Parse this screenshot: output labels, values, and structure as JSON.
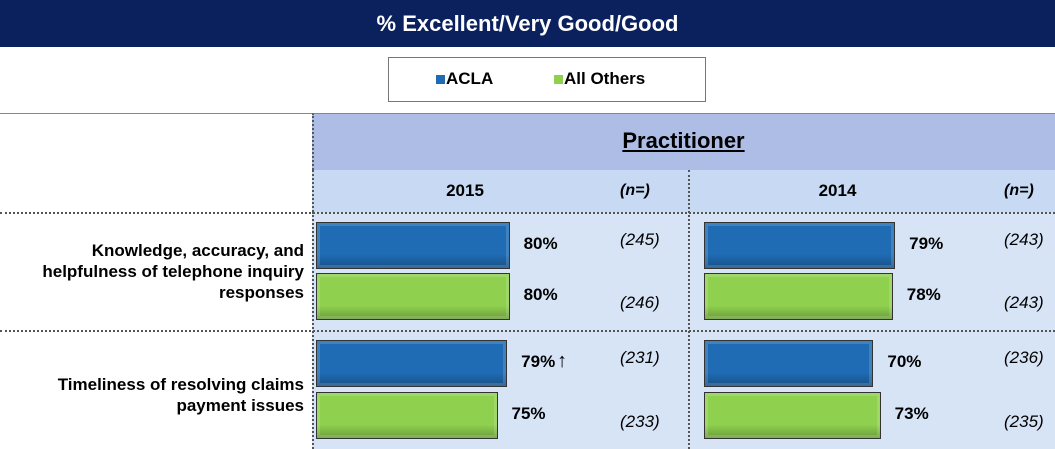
{
  "chart_data": {
    "type": "bar",
    "title": "% Excellent/Very Good/Good",
    "section": "Practitioner",
    "n_header": "(n=)",
    "categories": [
      "Knowledge, accuracy, and helpfulness of telephone inquiry responses",
      "Timeliness of resolving claims payment issues"
    ],
    "panels": [
      {
        "year": "2015",
        "series": [
          {
            "name": "ACLA",
            "color": "#1f6cb4",
            "values": [
              80,
              79
            ],
            "value_labels": [
              "80%",
              "79%"
            ],
            "sig_up": [
              false,
              true
            ],
            "n": [
              245,
              231
            ],
            "n_labels": [
              "(245)",
              "(231)"
            ]
          },
          {
            "name": "All Others",
            "color": "#8fd14f",
            "values": [
              80,
              75
            ],
            "value_labels": [
              "80%",
              "75%"
            ],
            "sig_up": [
              false,
              false
            ],
            "n": [
              246,
              233
            ],
            "n_labels": [
              "(246)",
              "(233)"
            ]
          }
        ]
      },
      {
        "year": "2014",
        "series": [
          {
            "name": "ACLA",
            "color": "#1f6cb4",
            "values": [
              79,
              70
            ],
            "value_labels": [
              "79%",
              "70%"
            ],
            "sig_up": [
              false,
              false
            ],
            "n": [
              243,
              236
            ],
            "n_labels": [
              "(243)",
              "(236)"
            ]
          },
          {
            "name": "All Others",
            "color": "#8fd14f",
            "values": [
              78,
              73
            ],
            "value_labels": [
              "78%",
              "73%"
            ],
            "sig_up": [
              false,
              false
            ],
            "n": [
              243,
              235
            ],
            "n_labels": [
              "(243)",
              "(235)"
            ]
          }
        ]
      }
    ]
  }
}
